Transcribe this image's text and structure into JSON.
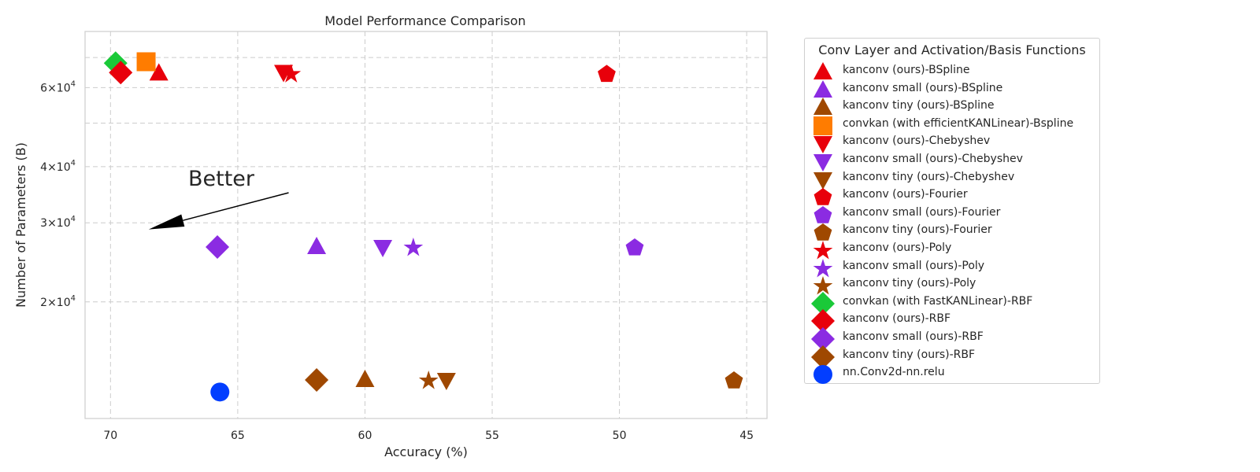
{
  "chart_data": {
    "type": "scatter",
    "title": "Model Performance Comparison",
    "xlabel": "Accuracy (%)",
    "ylabel": "Number of Parameters (B)",
    "xlim": [
      71,
      44.2
    ],
    "ylim": [
      11000,
      80000
    ],
    "y_scale": "log",
    "x_inverted": true,
    "grid": true,
    "x_ticks": [
      70,
      65,
      60,
      55,
      50,
      45
    ],
    "y_ticks": [
      {
        "value": 20000,
        "mantissa": "2",
        "base": "10",
        "exp": "4"
      },
      {
        "value": 30000,
        "mantissa": "3",
        "base": "10",
        "exp": "4"
      },
      {
        "value": 40000,
        "mantissa": "4",
        "base": "10",
        "exp": "4"
      },
      {
        "value": 60000,
        "mantissa": "6",
        "base": "10",
        "exp": "4"
      }
    ],
    "y_minor_grid": [
      50000,
      70000
    ],
    "annotation": {
      "text": "Better",
      "arrow_from": [
        63,
        35000
      ],
      "arrow_to": [
        68.5,
        29000
      ]
    },
    "legend_title": "Conv Layer and Activation/Basis Functions",
    "legend_placement": "outside-right",
    "series": [
      {
        "name": "kanconv (ours)-BSpline",
        "marker": "triangle-up",
        "color": "#e8000b",
        "points": [
          [
            68.1,
            64500
          ]
        ]
      },
      {
        "name": "kanconv small (ours)-BSpline",
        "marker": "triangle-up",
        "color": "#8b2be2",
        "points": [
          [
            61.9,
            26500
          ]
        ]
      },
      {
        "name": "kanconv tiny (ours)-BSpline",
        "marker": "triangle-up",
        "color": "#9f4800",
        "points": [
          [
            60.0,
            13400
          ]
        ]
      },
      {
        "name": "convkan (with efficientKANLinear)-Bspline",
        "marker": "square",
        "color": "#ff7c00",
        "points": [
          [
            68.6,
            68500
          ]
        ]
      },
      {
        "name": "kanconv (ours)-Chebyshev",
        "marker": "triangle-down",
        "color": "#e8000b",
        "points": [
          [
            63.2,
            65000
          ]
        ]
      },
      {
        "name": "kanconv small (ours)-Chebyshev",
        "marker": "triangle-down",
        "color": "#8b2be2",
        "points": [
          [
            59.3,
            26500
          ]
        ]
      },
      {
        "name": "kanconv tiny (ours)-Chebyshev",
        "marker": "triangle-down",
        "color": "#9f4800",
        "points": [
          [
            56.8,
            13400
          ]
        ]
      },
      {
        "name": "kanconv (ours)-Fourier",
        "marker": "pentagon",
        "color": "#e8000b",
        "points": [
          [
            50.5,
            64500
          ]
        ]
      },
      {
        "name": "kanconv small (ours)-Fourier",
        "marker": "pentagon",
        "color": "#8b2be2",
        "points": [
          [
            49.4,
            26500
          ]
        ]
      },
      {
        "name": "kanconv tiny (ours)-Fourier",
        "marker": "pentagon",
        "color": "#9f4800",
        "points": [
          [
            45.5,
            13400
          ]
        ]
      },
      {
        "name": "kanconv (ours)-Poly",
        "marker": "star",
        "color": "#e8000b",
        "points": [
          [
            62.9,
            64500
          ]
        ]
      },
      {
        "name": "kanconv small (ours)-Poly",
        "marker": "star",
        "color": "#8b2be2",
        "points": [
          [
            58.1,
            26500
          ]
        ]
      },
      {
        "name": "kanconv tiny (ours)-Poly",
        "marker": "star",
        "color": "#9f4800",
        "points": [
          [
            57.5,
            13400
          ]
        ]
      },
      {
        "name": "convkan (with FastKANLinear)-RBF",
        "marker": "diamond",
        "color": "#1ac938",
        "points": [
          [
            69.8,
            68000
          ]
        ]
      },
      {
        "name": "kanconv (ours)-RBF",
        "marker": "diamond",
        "color": "#e8000b",
        "points": [
          [
            69.6,
            64800
          ]
        ]
      },
      {
        "name": "kanconv small (ours)-RBF",
        "marker": "diamond",
        "color": "#8b2be2",
        "points": [
          [
            65.8,
            26500
          ]
        ]
      },
      {
        "name": "kanconv tiny (ours)-RBF",
        "marker": "diamond",
        "color": "#9f4800",
        "points": [
          [
            61.9,
            13400
          ]
        ]
      },
      {
        "name": "nn.Conv2d-nn.relu",
        "marker": "circle",
        "color": "#023eff",
        "points": [
          [
            65.7,
            12600
          ]
        ]
      }
    ]
  }
}
